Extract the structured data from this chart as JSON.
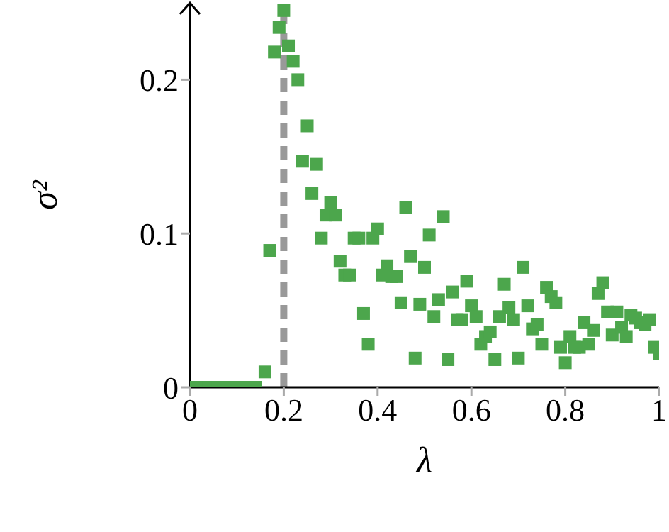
{
  "chart_data": {
    "type": "scatter",
    "xlabel": "λ",
    "ylabel": "σ²",
    "marker": "square",
    "xlim": [
      0,
      1
    ],
    "ylim": [
      0,
      0.25
    ],
    "xticks": [
      0,
      0.2,
      0.4,
      0.6,
      0.8,
      1
    ],
    "yticks": [
      0,
      0.1,
      0.2
    ],
    "ref_lines": [
      {
        "axis": "x",
        "value": 0.2,
        "color": "#999999",
        "line_style": "dashed"
      }
    ],
    "series": [
      {
        "color": "#4ca64c",
        "x": [
          0,
          0.02,
          0.04,
          0.06,
          0.08,
          0.1,
          0.12,
          0.14,
          0.16,
          0.17,
          0.18,
          0.19,
          0.2,
          0.21,
          0.22,
          0.23,
          0.24,
          0.25,
          0.26,
          0.27,
          0.28,
          0.29,
          0.3,
          0.31,
          0.32,
          0.33,
          0.34,
          0.35,
          0.36,
          0.37,
          0.38,
          0.39,
          0.4,
          0.41,
          0.42,
          0.43,
          0.44,
          0.45,
          0.46,
          0.47,
          0.48,
          0.49,
          0.5,
          0.51,
          0.52,
          0.53,
          0.54,
          0.55,
          0.56,
          0.57,
          0.58,
          0.59,
          0.6,
          0.61,
          0.62,
          0.63,
          0.64,
          0.65,
          0.66,
          0.67,
          0.68,
          0.69,
          0.7,
          0.71,
          0.72,
          0.73,
          0.74,
          0.75,
          0.76,
          0.77,
          0.78,
          0.79,
          0.8,
          0.81,
          0.82,
          0.83,
          0.84,
          0.85,
          0.86,
          0.87,
          0.88,
          0.89,
          0.9,
          0.91,
          0.92,
          0.93,
          0.94,
          0.95,
          0.96,
          0.97,
          0.98,
          0.99,
          1
        ],
        "values": [
          0,
          0,
          0,
          0,
          0,
          0,
          0,
          0,
          0.01,
          0.089,
          0.218,
          0.234,
          0.245,
          0.222,
          0.212,
          0.2,
          0.147,
          0.17,
          0.126,
          0.145,
          0.097,
          0.112,
          0.12,
          0.112,
          0.082,
          0.073,
          0.073,
          0.097,
          0.097,
          0.048,
          0.028,
          0.097,
          0.103,
          0.073,
          0.079,
          0.072,
          0.072,
          0.055,
          0.117,
          0.085,
          0.019,
          0.054,
          0.078,
          0.099,
          0.046,
          0.057,
          0.111,
          0.018,
          0.062,
          0.044,
          0.044,
          0.069,
          0.053,
          0.046,
          0.028,
          0.033,
          0.036,
          0.018,
          0.046,
          0.067,
          0.052,
          0.044,
          0.019,
          0.078,
          0.053,
          0.038,
          0.041,
          0.028,
          0.065,
          0.059,
          0.055,
          0.026,
          0.016,
          0.033,
          0.026,
          0.026,
          0.042,
          0.028,
          0.037,
          0.061,
          0.068,
          0.049,
          0.034,
          0.049,
          0.039,
          0.033,
          0.047,
          0.045,
          0.042,
          0.041,
          0.044,
          0.026,
          0.022
        ]
      }
    ]
  }
}
